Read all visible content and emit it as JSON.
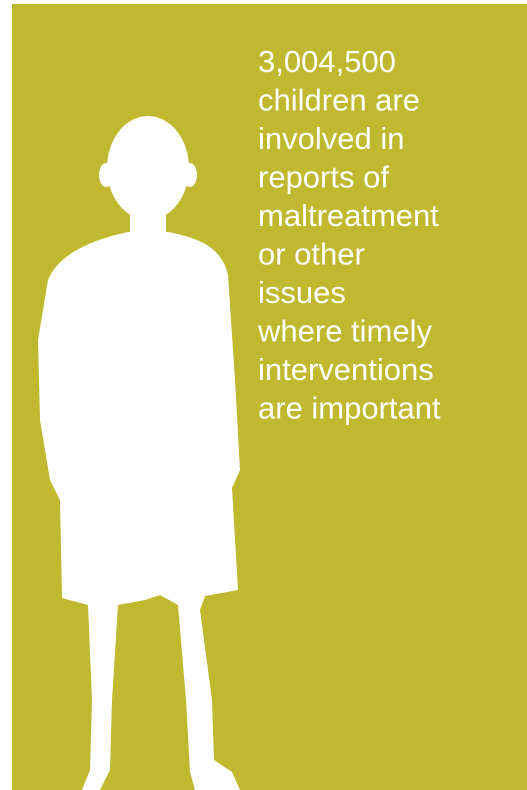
{
  "statistic": "3,004,500",
  "description_lines": [
    "children are",
    "involved in",
    "reports of",
    "maltreatment",
    "or other",
    "issues",
    "where timely",
    "interventions",
    "are important"
  ]
}
